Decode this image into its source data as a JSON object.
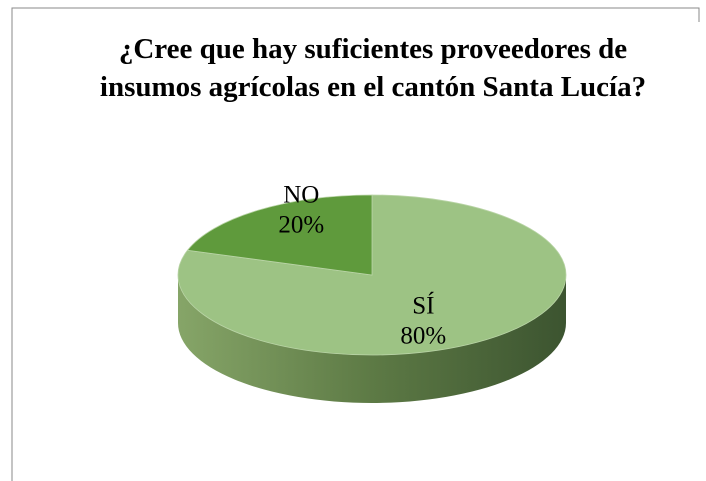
{
  "chart_data": {
    "type": "pie3d",
    "title": "¿Cree que hay suficientes proveedores de insumos agrícolas en el cantón Santa Lucía?",
    "categories": [
      "SÍ",
      "NO"
    ],
    "values": [
      80,
      20
    ],
    "value_labels": [
      "80%",
      "20%"
    ],
    "colors": [
      "#9dc384",
      "#5f9a3c"
    ]
  }
}
